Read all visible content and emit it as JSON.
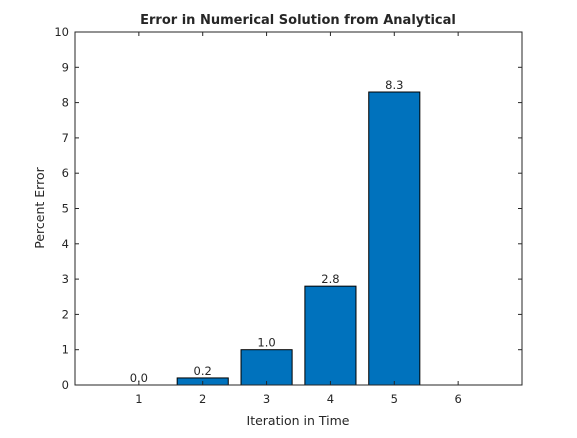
{
  "chart_data": {
    "type": "bar",
    "title": "Error in Numerical Solution from Analytical",
    "xlabel": "Iteration in Time",
    "ylabel": "Percent Error",
    "categories": [
      1,
      2,
      3,
      4,
      5
    ],
    "values": [
      0.0,
      0.2,
      1.0,
      2.8,
      8.3
    ],
    "data_labels": [
      "0.0",
      "0.2",
      "1.0",
      "2.8",
      "8.3"
    ],
    "bar_color": "#0072BD",
    "xlim": [
      0,
      7
    ],
    "ylim": [
      0,
      10
    ],
    "xticks": [
      1,
      2,
      3,
      4,
      5,
      6
    ],
    "yticks": [
      0,
      1,
      2,
      3,
      4,
      5,
      6,
      7,
      8,
      9,
      10
    ],
    "grid": false
  }
}
